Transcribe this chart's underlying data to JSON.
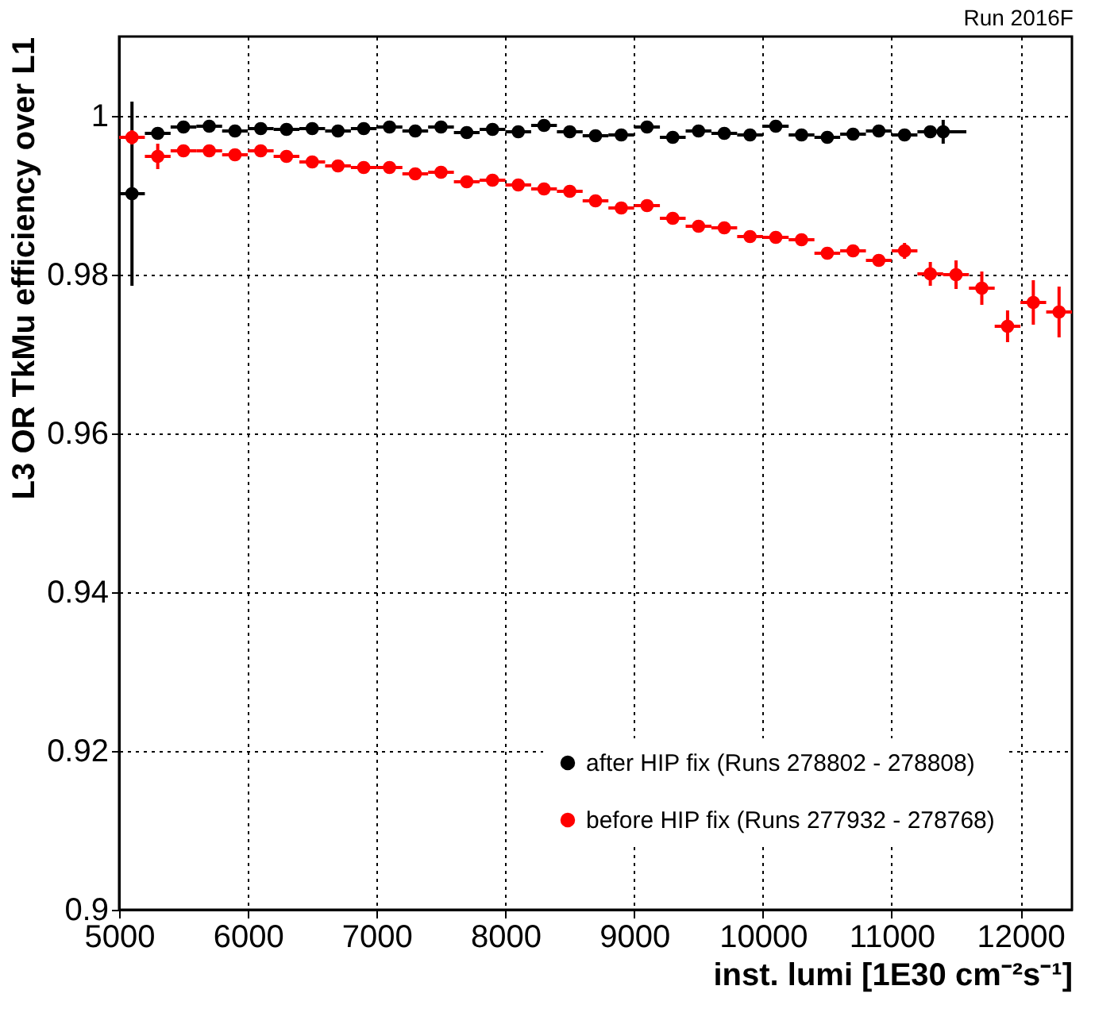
{
  "chart_data": {
    "type": "scatter",
    "xlabel": "inst. lumi [1E30 cm⁻²s⁻¹]",
    "ylabel": "L3 OR TkMu efficiency over L1",
    "annotations": [
      "Run 2016F"
    ],
    "xlim": [
      5000,
      12400
    ],
    "xticks": [
      5000,
      6000,
      7000,
      8000,
      9000,
      10000,
      11000,
      12000
    ],
    "ylim": [
      0.9,
      1.01
    ],
    "yticks": [
      0.9,
      0.92,
      0.94,
      0.96,
      0.98,
      1
    ],
    "grid": true,
    "legend": "bottom right",
    "marker": "circle",
    "series": [
      {
        "name": "after HIP fix  (Runs 278802 - 278808)",
        "color": "#000000",
        "x": [
          5100,
          5300,
          5500,
          5700,
          5900,
          6100,
          6300,
          6500,
          6700,
          6900,
          7100,
          7300,
          7500,
          7700,
          7900,
          8100,
          8300,
          8500,
          8700,
          8900,
          9100,
          9300,
          9500,
          9700,
          9900,
          10100,
          10300,
          10500,
          10700,
          10900,
          11100,
          11300,
          11400
        ],
        "values": [
          0.9902,
          0.9978,
          0.9986,
          0.9987,
          0.9981,
          0.9984,
          0.9983,
          0.9984,
          0.9981,
          0.9984,
          0.9986,
          0.9981,
          0.9986,
          0.9979,
          0.9983,
          0.998,
          0.9988,
          0.998,
          0.9975,
          0.9976,
          0.9986,
          0.9973,
          0.9981,
          0.9978,
          0.9976,
          0.9987,
          0.9976,
          0.9973,
          0.9977,
          0.9981,
          0.9976,
          0.998,
          0.998
        ],
        "errors": [
          0.0116,
          0.0003,
          0.0003,
          0.0003,
          0.0003,
          0.0003,
          0.0003,
          0.0003,
          0.0003,
          0.0003,
          0.0003,
          0.0003,
          0.0003,
          0.0003,
          0.0003,
          0.0003,
          0.0003,
          0.0003,
          0.0003,
          0.0003,
          0.0003,
          0.0003,
          0.0003,
          0.0003,
          0.0003,
          0.0003,
          0.0003,
          0.0003,
          0.0003,
          0.0003,
          0.0003,
          0.0004,
          0.0015
        ],
        "xerrors": [
          100,
          100,
          100,
          100,
          100,
          100,
          100,
          100,
          100,
          100,
          100,
          100,
          100,
          100,
          100,
          100,
          100,
          100,
          100,
          100,
          100,
          100,
          100,
          100,
          100,
          100,
          100,
          100,
          100,
          100,
          100,
          100,
          180
        ]
      },
      {
        "name": "before HIP fix (Runs 277932 - 278768)",
        "color": "#ff0000",
        "x": [
          5100,
          5300,
          5500,
          5700,
          5900,
          6100,
          6300,
          6500,
          6700,
          6900,
          7100,
          7300,
          7500,
          7700,
          7900,
          8100,
          8300,
          8500,
          8700,
          8900,
          9100,
          9300,
          9500,
          9700,
          9900,
          10100,
          10300,
          10500,
          10700,
          10900,
          11100,
          11300,
          11500,
          11700,
          11900,
          12100,
          12300
        ],
        "values": [
          0.9973,
          0.9949,
          0.9956,
          0.9956,
          0.9951,
          0.9956,
          0.9949,
          0.9942,
          0.9937,
          0.9935,
          0.9935,
          0.9927,
          0.9929,
          0.9917,
          0.9919,
          0.9913,
          0.9908,
          0.9905,
          0.9893,
          0.9884,
          0.9887,
          0.9871,
          0.9861,
          0.9859,
          0.9848,
          0.9847,
          0.9844,
          0.9827,
          0.983,
          0.9818,
          0.983,
          0.9801,
          0.98,
          0.9783,
          0.9735,
          0.9765,
          0.9753
        ],
        "errors": [
          0.0009,
          0.0016,
          0.0004,
          0.0004,
          0.0004,
          0.0004,
          0.0004,
          0.0004,
          0.0004,
          0.0008,
          0.0004,
          0.0004,
          0.0004,
          0.0004,
          0.0004,
          0.0004,
          0.0004,
          0.0004,
          0.0004,
          0.0004,
          0.0004,
          0.0004,
          0.0004,
          0.0004,
          0.0004,
          0.0004,
          0.0004,
          0.0004,
          0.0004,
          0.0006,
          0.001,
          0.0015,
          0.0018,
          0.0021,
          0.002,
          0.0028,
          0.0032
        ],
        "xerrors": [
          100,
          100,
          100,
          100,
          100,
          100,
          100,
          100,
          100,
          100,
          100,
          100,
          100,
          100,
          100,
          100,
          100,
          100,
          100,
          100,
          100,
          100,
          100,
          100,
          100,
          100,
          100,
          100,
          100,
          100,
          100,
          100,
          100,
          100,
          100,
          100,
          100
        ]
      }
    ]
  }
}
